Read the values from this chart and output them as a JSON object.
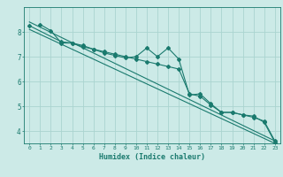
{
  "title": "",
  "xlabel": "Humidex (Indice chaleur)",
  "ylabel": "",
  "background_color": "#cceae7",
  "line_color": "#1a7a6e",
  "grid_color": "#aad4d0",
  "xlim": [
    -0.5,
    23.5
  ],
  "ylim": [
    3.5,
    9.0
  ],
  "yticks": [
    4,
    5,
    6,
    7,
    8
  ],
  "xticks": [
    0,
    1,
    2,
    3,
    4,
    5,
    6,
    7,
    8,
    9,
    10,
    11,
    12,
    13,
    14,
    15,
    16,
    17,
    18,
    19,
    20,
    21,
    22,
    23
  ],
  "line1_x": [
    1,
    2,
    3,
    4,
    5,
    6,
    7,
    8,
    9,
    10,
    11,
    12,
    13,
    14,
    15,
    16,
    17,
    18,
    19,
    20,
    21,
    22,
    23
  ],
  "line1_y": [
    8.3,
    8.05,
    7.55,
    7.55,
    7.4,
    7.3,
    7.15,
    7.05,
    6.95,
    7.0,
    7.35,
    7.0,
    7.35,
    6.9,
    5.45,
    5.5,
    5.1,
    4.75,
    4.75,
    4.65,
    4.6,
    4.35,
    3.55
  ],
  "line2_x": [
    0,
    3,
    4,
    5,
    6,
    7,
    8,
    9,
    10,
    11,
    12,
    13,
    14,
    15,
    16,
    17,
    18,
    19,
    20,
    21,
    22,
    23
  ],
  "line2_y": [
    8.25,
    7.6,
    7.55,
    7.45,
    7.3,
    7.2,
    7.1,
    7.0,
    6.9,
    6.8,
    6.7,
    6.6,
    6.5,
    5.5,
    5.4,
    5.05,
    4.75,
    4.75,
    4.65,
    4.55,
    4.4,
    3.6
  ],
  "trend1_x": [
    0,
    23
  ],
  "trend1_y": [
    8.4,
    3.6
  ],
  "trend2_x": [
    0,
    23
  ],
  "trend2_y": [
    8.1,
    3.5
  ]
}
